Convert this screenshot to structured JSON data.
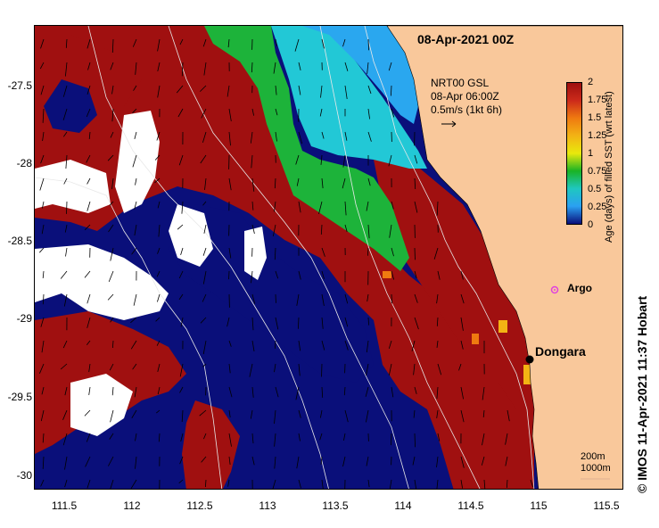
{
  "title": "08-Apr-2021 00Z",
  "vector_info": [
    "NRT00 GSL",
    "08-Apr 06:00Z",
    "0.5m/s (1kt 6h)"
  ],
  "axes": {
    "x_ticks": [
      "111.5",
      "112",
      "112.5",
      "113",
      "113.5",
      "114",
      "114.5",
      "115",
      "115.5"
    ],
    "y_ticks": [
      "-27.5",
      "-28",
      "-28.5",
      "-29",
      "-29.5",
      "-30"
    ]
  },
  "colorbar": {
    "label": "Age (days) of filled SST (wrt latest)",
    "ticks": [
      "2",
      "1.75",
      "1.5",
      "1.25",
      "1",
      "0.75",
      "0.5",
      "0.25",
      "0"
    ],
    "colors": [
      "#9e0f0f",
      "#cc2a1a",
      "#ef7a10",
      "#f3b314",
      "#e9e90c",
      "#19b325",
      "#1fc7c0",
      "#2aa0f2",
      "#0a0f7a"
    ]
  },
  "markers": {
    "argo_label": "Argo",
    "argo_color": "#e040e0",
    "dongara_label": "Dongara"
  },
  "contour_legend": [
    "200m",
    "1000m"
  ],
  "credit": "© IMOS 11-Apr-2021 11:37 Hobart",
  "colors": {
    "land": "#f9c89b",
    "deep_blue": "#0a0f7a",
    "dark_red": "#a01010",
    "green": "#1db33a",
    "cyan": "#22c8d6",
    "sky": "#2aa7ef",
    "white": "#ffffff"
  }
}
